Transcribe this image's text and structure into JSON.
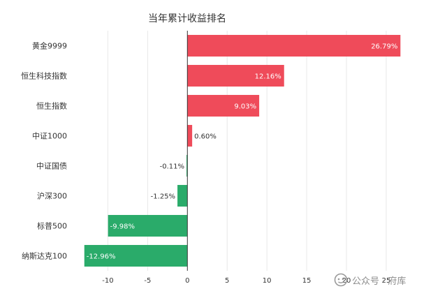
{
  "chart_data": {
    "type": "bar",
    "orientation": "horizontal",
    "title": "当年累计收益排名",
    "categories": [
      "黄金9999",
      "恒生科技指数",
      "恒生指数",
      "中证1000",
      "中证国债",
      "沪深300",
      "标普500",
      "纳斯达克100"
    ],
    "values": [
      26.79,
      12.16,
      9.03,
      0.6,
      -0.11,
      -1.25,
      -9.98,
      -12.96
    ],
    "data_labels": [
      "26.79%",
      "12.16%",
      "9.03%",
      "0.60%",
      "-0.11%",
      "-1.25%",
      "-9.98%",
      "-12.96%"
    ],
    "xlim": [
      -13.2,
      27.2
    ],
    "xticks": [
      -10,
      -5,
      0,
      5,
      10,
      15,
      20,
      25
    ],
    "xlabel": "",
    "ylabel": "",
    "grid": "vertical",
    "colors": {
      "positive": "#ef4b5a",
      "negative": "#2aab6a",
      "grid": "#e8e8e8",
      "axis": "#333333"
    }
  },
  "watermark": {
    "text": "公众号 · 府库",
    "icon": "wechat-search-icon"
  }
}
